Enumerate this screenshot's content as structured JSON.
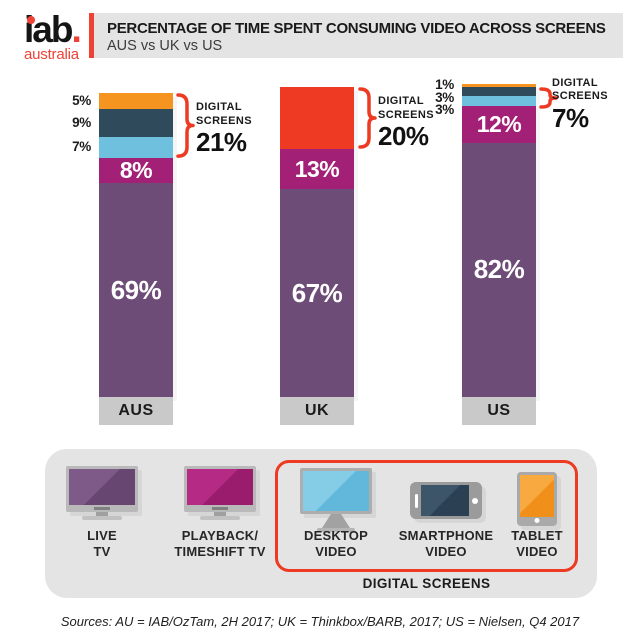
{
  "header": {
    "logo_text": "iab",
    "logo_dot": ".",
    "logo_sub": "australia",
    "title": "PERCENTAGE OF TIME SPENT CONSUMING VIDEO ACROSS SCREENS",
    "subtitle": "AUS vs UK vs US"
  },
  "palette": {
    "orange": "#F5941F",
    "navy": "#2F4A5B",
    "lightblue": "#6FC0DF",
    "magenta": "#A32077",
    "purple": "#6E4C78",
    "red": "#EE3A23",
    "logo_red": "#EF4135",
    "category_gray": "#C9C9C9",
    "panel_gray": "#E4E4E4",
    "header_gray": "#E4E4E4"
  },
  "chart_data": {
    "type": "bar",
    "subtype": "stacked-percentage-columns",
    "title": "PERCENTAGE OF TIME SPENT CONSUMING VIDEO ACROSS SCREENS",
    "subtitle": "AUS vs UK vs US",
    "categories": [
      "AUS",
      "UK",
      "US"
    ],
    "ylim": [
      0,
      100
    ],
    "grid": false,
    "legend_position": "bottom",
    "annotation_lines": [
      "DIGITAL",
      "SCREENS"
    ],
    "bars": [
      {
        "category": "AUS",
        "digital_screens_total": "21%",
        "segments": [
          {
            "name": "tablet-video",
            "value": 5,
            "color": "orange",
            "label": "5%",
            "label_pos": "left"
          },
          {
            "name": "smartphone-video",
            "value": 9,
            "color": "navy",
            "label": "9%",
            "label_pos": "left"
          },
          {
            "name": "desktop-video",
            "value": 7,
            "color": "lightblue",
            "label": "7%",
            "label_pos": "left"
          },
          {
            "name": "playback-timeshift-tv",
            "value": 8,
            "color": "magenta",
            "label": "8%",
            "label_pos": "inside"
          },
          {
            "name": "live-tv",
            "value": 69,
            "color": "purple",
            "label": "69%",
            "label_pos": "inside",
            "big": true
          }
        ]
      },
      {
        "category": "UK",
        "digital_screens_total": "20%",
        "segments": [
          {
            "name": "digital-screens-combined",
            "value": 20,
            "color": "red",
            "label": "",
            "label_pos": "none"
          },
          {
            "name": "playback-timeshift-tv",
            "value": 13,
            "color": "magenta",
            "label": "13%",
            "label_pos": "inside"
          },
          {
            "name": "live-tv",
            "value": 67,
            "color": "purple",
            "label": "67%",
            "label_pos": "inside",
            "big": true
          }
        ]
      },
      {
        "category": "US",
        "digital_screens_total": "7%",
        "segments": [
          {
            "name": "tablet-video",
            "value": 1,
            "color": "orange",
            "label": "1%",
            "label_pos": "left"
          },
          {
            "name": "smartphone-video",
            "value": 3,
            "color": "navy",
            "label": "3%",
            "label_pos": "left"
          },
          {
            "name": "desktop-video",
            "value": 3,
            "color": "lightblue",
            "label": "3%",
            "label_pos": "left"
          },
          {
            "name": "playback-timeshift-tv",
            "value": 12,
            "color": "magenta",
            "label": "12%",
            "label_pos": "inside"
          },
          {
            "name": "live-tv",
            "value": 82,
            "color": "purple",
            "label": "82%",
            "label_pos": "inside",
            "big": true
          }
        ]
      }
    ]
  },
  "legend": {
    "items": [
      {
        "label1": "LIVE",
        "label2": "TV"
      },
      {
        "label1": "PLAYBACK/",
        "label2": "TIMESHIFT TV"
      },
      {
        "label1": "DESKTOP",
        "label2": "VIDEO"
      },
      {
        "label1": "SMARTPHONE",
        "label2": "VIDEO"
      },
      {
        "label1": "TABLET",
        "label2": "VIDEO"
      }
    ],
    "group_label": "DIGITAL SCREENS"
  },
  "footer": {
    "sources": "Sources: AU = IAB/OzTam, 2H 2017; UK = Thinkbox/BARB, 2017; US = Nielsen, Q4 2017"
  }
}
